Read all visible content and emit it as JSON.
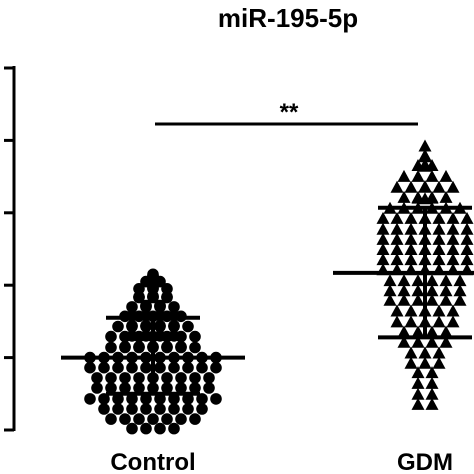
{
  "chart_data": {
    "type": "scatter",
    "title": "miR-195-5p",
    "categories": [
      "Control",
      "GDM"
    ],
    "ylim": [
      0,
      5
    ],
    "y_ticks": [
      0,
      1,
      2,
      3,
      4,
      5
    ],
    "grid": false,
    "series": [
      {
        "category": "Control",
        "marker": "circle",
        "mean": 1.0,
        "error_low": 0.5,
        "error_high": 1.55,
        "values": [
          2.15,
          2.13,
          2.12,
          2.05,
          2.05,
          2.04,
          1.98,
          1.96,
          1.95,
          1.95,
          1.95,
          1.85,
          1.84,
          1.84,
          1.84,
          1.83,
          1.83,
          1.83,
          1.72,
          1.72,
          1.71,
          1.71,
          1.7,
          1.7,
          1.7,
          1.7,
          1.58,
          1.58,
          1.58,
          1.58,
          1.57,
          1.57,
          1.57,
          1.57,
          1.57,
          1.44,
          1.44,
          1.44,
          1.44,
          1.43,
          1.43,
          1.43,
          1.43,
          1.43,
          1.43,
          1.3,
          1.3,
          1.3,
          1.3,
          1.29,
          1.29,
          1.29,
          1.29,
          1.29,
          1.29,
          1.29,
          1.15,
          1.15,
          1.15,
          1.15,
          1.15,
          1.14,
          1.14,
          1.14,
          1.14,
          1.14,
          1.14,
          1.14,
          1.0,
          1.0,
          1.0,
          1.0,
          1.0,
          1.0,
          1.0,
          1.0,
          1.0,
          1.0,
          0.86,
          0.86,
          0.86,
          0.86,
          0.86,
          0.86,
          0.86,
          0.86,
          0.86,
          0.86,
          0.72,
          0.72,
          0.72,
          0.72,
          0.72,
          0.72,
          0.72,
          0.72,
          0.72,
          0.58,
          0.58,
          0.58,
          0.58,
          0.58,
          0.58,
          0.58,
          0.58,
          0.58,
          0.43,
          0.43,
          0.43,
          0.43,
          0.43,
          0.43,
          0.43,
          0.43,
          0.43,
          0.43,
          0.29,
          0.29,
          0.29,
          0.29,
          0.29,
          0.29,
          0.29,
          0.29,
          0.15,
          0.15,
          0.15,
          0.15,
          0.15,
          0.15,
          0.15,
          0.02,
          0.02,
          0.02,
          0.02
        ]
      },
      {
        "category": "GDM",
        "marker": "triangle",
        "mean": 2.17,
        "error_low": 1.28,
        "error_high": 3.07,
        "values": [
          3.93,
          3.8,
          3.78,
          3.67,
          3.66,
          3.65,
          3.66,
          3.51,
          3.51,
          3.51,
          3.51,
          3.37,
          3.36,
          3.36,
          3.36,
          3.36,
          3.36,
          3.22,
          3.22,
          3.22,
          3.22,
          3.21,
          3.21,
          3.2,
          3.07,
          3.07,
          3.07,
          3.07,
          3.07,
          3.07,
          2.93,
          2.93,
          2.93,
          2.93,
          2.93,
          2.93,
          2.93,
          2.78,
          2.78,
          2.78,
          2.78,
          2.78,
          2.78,
          2.78,
          2.64,
          2.64,
          2.64,
          2.64,
          2.64,
          2.64,
          2.64,
          2.5,
          2.5,
          2.5,
          2.5,
          2.5,
          2.5,
          2.5,
          2.36,
          2.36,
          2.36,
          2.36,
          2.36,
          2.36,
          2.36,
          2.22,
          2.22,
          2.22,
          2.22,
          2.22,
          2.22,
          2.22,
          2.07,
          2.07,
          2.07,
          2.07,
          2.07,
          2.07,
          1.93,
          1.93,
          1.93,
          1.93,
          1.93,
          1.93,
          1.8,
          1.8,
          1.8,
          1.8,
          1.8,
          1.8,
          1.65,
          1.65,
          1.65,
          1.65,
          1.65,
          1.5,
          1.5,
          1.5,
          1.5,
          1.5,
          1.36,
          1.36,
          1.36,
          1.36,
          1.22,
          1.22,
          1.22,
          1.22,
          1.07,
          1.07,
          1.07,
          0.93,
          0.93,
          0.93,
          0.8,
          0.8,
          0.65,
          0.65,
          0.5,
          0.5,
          0.36,
          0.36
        ]
      }
    ],
    "annotations": [
      {
        "text": "**",
        "between": [
          "Control",
          "GDM"
        ]
      }
    ]
  }
}
